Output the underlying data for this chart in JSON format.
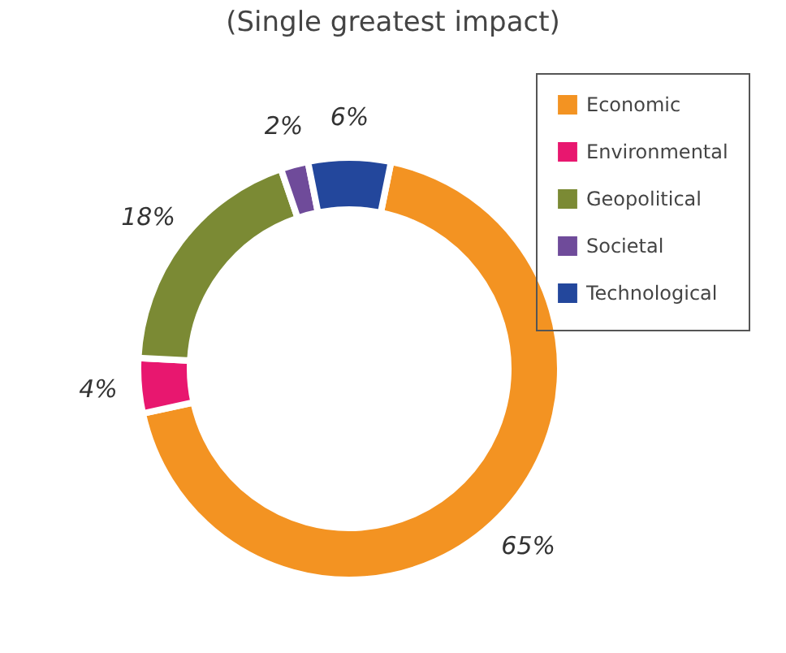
{
  "chart_data": {
    "type": "donut",
    "title": "(Single greatest impact)",
    "categories": [
      "Economic",
      "Environmental",
      "Geopolitical",
      "Societal",
      "Technological"
    ],
    "values": [
      65,
      4,
      18,
      2,
      6
    ],
    "value_labels": [
      "65%",
      "4%",
      "18%",
      "2%",
      "6%"
    ],
    "colors": [
      "#f39322",
      "#e8176f",
      "#7b8a34",
      "#6f4b9a",
      "#23479c"
    ],
    "legend": "top right"
  }
}
